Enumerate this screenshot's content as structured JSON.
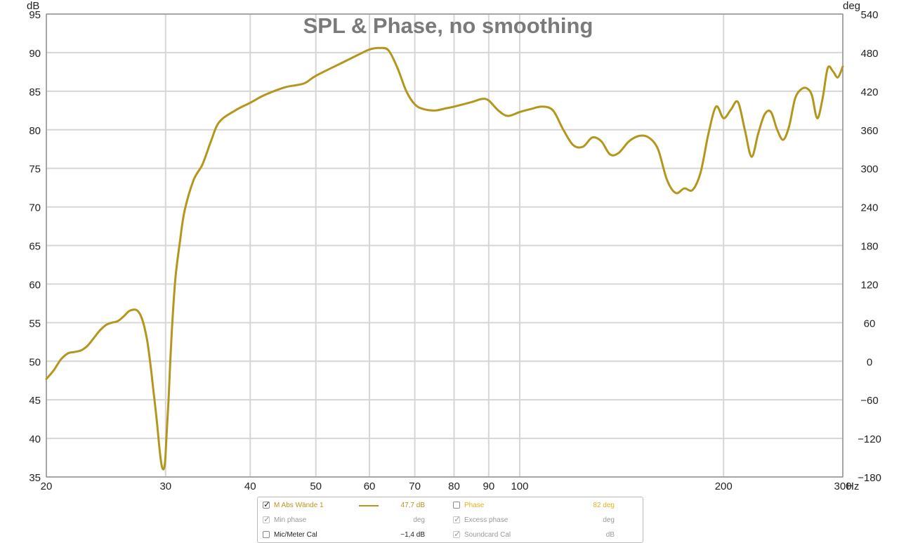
{
  "colors": {
    "trace": "#b5961d",
    "grid": "#d6d6d6",
    "axis": "#777777",
    "title": "#7a7a7a",
    "disabled_text": "#9a9a9a"
  },
  "chart_data": {
    "type": "line",
    "title": "SPL & Phase, no smoothing",
    "xscale": "log",
    "xlim": [
      20,
      300
    ],
    "ylim": [
      35,
      95
    ],
    "y2lim": [
      -180,
      540
    ],
    "xunit": "Hz",
    "yunit": "dB",
    "y2unit": "deg",
    "grid": true,
    "xticks": [
      20,
      30,
      40,
      50,
      60,
      70,
      80,
      90,
      100,
      200,
      300
    ],
    "xtick_labels": [
      "20",
      "30",
      "40",
      "50",
      "60",
      "70",
      "80",
      "90",
      "100",
      "200",
      "300"
    ],
    "yticks": [
      35,
      40,
      45,
      50,
      55,
      60,
      65,
      70,
      75,
      80,
      85,
      90,
      95
    ],
    "y2ticks": [
      -180,
      -120,
      -60,
      0,
      60,
      120,
      180,
      240,
      300,
      360,
      420,
      480,
      540
    ],
    "y2tick_labels": [
      "−180",
      "−120",
      "−60",
      "0",
      "60",
      "120",
      "180",
      "240",
      "300",
      "360",
      "420",
      "480",
      "540"
    ],
    "series": [
      {
        "name": "M Abs Wände 1",
        "x": [
          20,
          20.5,
          21,
          21.5,
          22,
          22.5,
          23,
          23.5,
          24,
          24.5,
          25,
          25.5,
          26,
          26.5,
          27,
          27.3,
          27.6,
          27.9,
          28.2,
          28.5,
          28.8,
          29.1,
          29.4,
          29.6,
          29.8,
          29.95,
          30.1,
          30.3,
          30.6,
          31,
          31.5,
          32,
          33,
          34,
          35,
          36,
          38,
          40,
          42,
          45,
          48,
          50,
          55,
          58,
          60,
          62,
          64,
          66,
          68,
          70,
          72,
          75,
          78,
          80,
          85,
          88,
          90,
          93,
          96,
          100,
          104,
          108,
          112,
          116,
          120,
          124,
          128,
          132,
          136,
          140,
          145,
          150,
          155,
          160,
          165,
          170,
          175,
          180,
          185,
          190,
          195,
          200,
          205,
          210,
          215,
          220,
          225,
          230,
          235,
          240,
          245,
          250,
          255,
          260,
          265,
          270,
          275,
          280,
          285,
          290,
          295,
          300
        ],
        "y": [
          47.7,
          48.8,
          50.2,
          51.0,
          51.2,
          51.4,
          52.0,
          53.0,
          54.0,
          54.7,
          55.0,
          55.2,
          55.8,
          56.5,
          56.7,
          56.5,
          55.8,
          54.5,
          52.5,
          49.5,
          46.0,
          42.5,
          38.5,
          36.5,
          36.0,
          37.0,
          40.5,
          45.0,
          53.0,
          60.5,
          65.5,
          69.5,
          73.5,
          75.5,
          78.5,
          81.0,
          82.5,
          83.5,
          84.5,
          85.5,
          86.0,
          87.0,
          88.8,
          89.8,
          90.4,
          90.6,
          90.3,
          88.0,
          85.0,
          83.3,
          82.7,
          82.5,
          82.8,
          83.0,
          83.6,
          84.0,
          83.8,
          82.5,
          81.8,
          82.3,
          82.7,
          83.0,
          82.5,
          80.0,
          78.0,
          77.8,
          79.0,
          78.5,
          76.8,
          77.0,
          78.5,
          79.2,
          79.0,
          77.5,
          73.5,
          71.8,
          72.4,
          72.2,
          74.5,
          79.5,
          83.0,
          81.5,
          82.6,
          83.6,
          80.0,
          76.5,
          79.5,
          82.0,
          82.3,
          80.0,
          78.7,
          80.5,
          84.0,
          85.2,
          85.4,
          84.5,
          81.5,
          84.0,
          88.0,
          87.6,
          86.8,
          88.2
        ]
      }
    ]
  },
  "legend": {
    "rows": [
      {
        "label": "M Abs Wände 1",
        "checked": true,
        "enabled": true,
        "value": "47,7 dB",
        "color": "#b5961d",
        "swatch": true
      },
      {
        "label": "Min phase",
        "checked": true,
        "enabled": false,
        "value": "deg",
        "color": "#9a9a9a",
        "swatch": false
      },
      {
        "label": "Mic/Meter Cal",
        "checked": false,
        "enabled": true,
        "value": "−1,4 dB",
        "color": "#222222",
        "swatch": false
      },
      {
        "label": "Phase",
        "checked": false,
        "enabled": true,
        "value": "82 deg",
        "color": "#e0b31e",
        "swatch": false
      },
      {
        "label": "Excess phase",
        "checked": true,
        "enabled": false,
        "value": "deg",
        "color": "#9a9a9a",
        "swatch": false
      },
      {
        "label": "Soundcard Cal",
        "checked": true,
        "enabled": false,
        "value": "dB",
        "color": "#9a9a9a",
        "swatch": false
      }
    ]
  }
}
